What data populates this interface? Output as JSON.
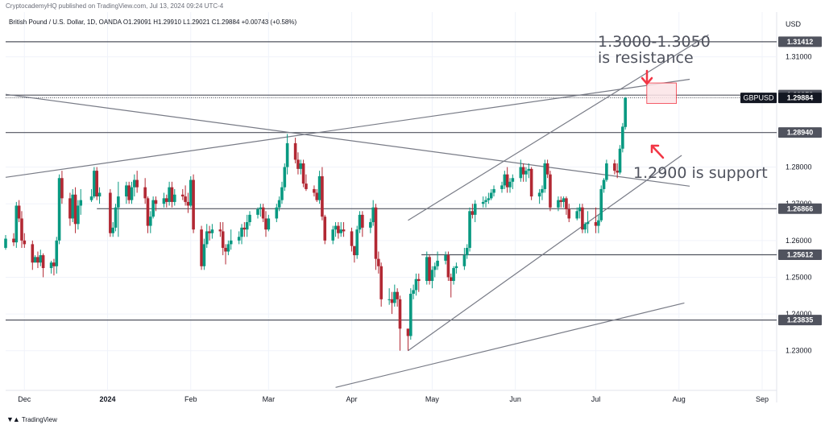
{
  "header": {
    "publisher": "CryptocademyHQ published on TradingView.com, Jul 13, 2024 09:24 UTC-4",
    "symbol_line": "British Pound / U.S. Dollar, 1D, OANDA  O1.29091  H1.29910  L1.29021  C1.29884  +0.00743 (+0.58%)"
  },
  "footer": {
    "brand": "TradingView",
    "logo": "tradingview-logo-icon"
  },
  "colors": {
    "up": "#089981",
    "down": "#b22833",
    "line": "#787b86",
    "box_fill": "#fce4e6",
    "box_stroke": "#f23645",
    "arrow": "#f23645",
    "grid_line": "#50535e"
  },
  "chart_data": {
    "type": "candlestick",
    "symbol": "GBPUSD",
    "currency": "USD",
    "ylim": [
      1.2192,
      1.3222
    ],
    "price_ticks": [
      "1.31000",
      "1.28000",
      "1.27000",
      "1.26000",
      "1.25000",
      "1.24000",
      "1.23000"
    ],
    "time_axis": {
      "labels": [
        "Dec",
        "2024",
        "Feb",
        "Mar",
        "Apr",
        "May",
        "Jun",
        "Jul",
        "Aug",
        "Sep"
      ],
      "dates": [
        "2023-12-01",
        "2024-01-01",
        "2024-02-01",
        "2024-03-01",
        "2024-04-01",
        "2024-05-01",
        "2024-06-01",
        "2024-07-01",
        "2024-08-01",
        "2024-09-01"
      ]
    },
    "horizontal_levels": [
      {
        "price": 1.31412,
        "label": "1.31412"
      },
      {
        "price": 1.29959,
        "label": "1.29959"
      },
      {
        "price": 1.2894,
        "label": "1.28940"
      },
      {
        "price": 1.26866,
        "label": "1.26866",
        "from": "2023-12-28"
      },
      {
        "price": 1.25612,
        "label": "1.25612",
        "from": "2024-04-27"
      },
      {
        "price": 1.23835,
        "label": "1.23835"
      }
    ],
    "current_price": {
      "label": "GBPUSD",
      "price": 1.29884,
      "value": "1.29884"
    },
    "trendlines": [
      {
        "from": [
          "2023-11-24",
          1.2772
        ],
        "to": [
          "2024-08-05",
          1.3039
        ]
      },
      {
        "from": [
          "2023-11-24",
          1.2998
        ],
        "to": [
          "2024-08-05",
          1.2748
        ]
      },
      {
        "from": [
          "2024-04-22",
          1.23
        ],
        "to": [
          "2024-08-02",
          1.2832
        ]
      },
      {
        "from": [
          "2024-04-22",
          1.2655
        ],
        "to": [
          "2024-08-12",
          1.316
        ]
      },
      {
        "from": [
          "2024-03-26",
          1.22
        ],
        "to": [
          "2024-08-03",
          1.243
        ]
      }
    ],
    "resistance_zone": {
      "from": "2024-07-20",
      "to": "2024-07-31",
      "low": 1.2973,
      "high": 1.3029
    },
    "annotations": [
      {
        "line1": "1.3000-1.3050",
        "line2": "is resistance"
      },
      {
        "line1": "1.2900 is support"
      }
    ],
    "candles": [
      [
        "2023-11-24",
        1.258,
        1.2615,
        1.2575,
        1.2605
      ],
      [
        "2023-11-27",
        1.2605,
        1.262,
        1.2585,
        1.2595
      ],
      [
        "2023-11-28",
        1.2595,
        1.2705,
        1.258,
        1.2695
      ],
      [
        "2023-11-29",
        1.2695,
        1.271,
        1.265,
        1.266
      ],
      [
        "2023-11-30",
        1.266,
        1.268,
        1.258,
        1.26
      ],
      [
        "2023-12-01",
        1.26,
        1.262,
        1.258,
        1.259
      ],
      [
        "2023-12-04",
        1.259,
        1.26,
        1.252,
        1.254
      ],
      [
        "2023-12-05",
        1.254,
        1.256,
        1.254,
        1.2555
      ],
      [
        "2023-12-06",
        1.2555,
        1.257,
        1.2525,
        1.254
      ],
      [
        "2023-12-07",
        1.254,
        1.2575,
        1.253,
        1.256
      ],
      [
        "2023-12-08",
        1.256,
        1.2565,
        1.25,
        1.2525
      ],
      [
        "2023-12-11",
        1.2525,
        1.2545,
        1.251,
        1.254
      ],
      [
        "2023-12-12",
        1.254,
        1.255,
        1.2505,
        1.253
      ],
      [
        "2023-12-13",
        1.253,
        1.261,
        1.251,
        1.26
      ],
      [
        "2023-12-14",
        1.26,
        1.278,
        1.259,
        1.277
      ],
      [
        "2023-12-15",
        1.277,
        1.279,
        1.27,
        1.2715
      ],
      [
        "2023-12-18",
        1.2715,
        1.273,
        1.264,
        1.266
      ],
      [
        "2023-12-19",
        1.266,
        1.274,
        1.265,
        1.2725
      ],
      [
        "2023-12-20",
        1.2725,
        1.2745,
        1.262,
        1.2645
      ],
      [
        "2023-12-21",
        1.2645,
        1.271,
        1.263,
        1.2695
      ],
      [
        "2023-12-22",
        1.2695,
        1.274,
        1.267,
        1.271
      ],
      [
        "2023-12-26",
        1.271,
        1.274,
        1.2705,
        1.272
      ],
      [
        "2023-12-27",
        1.272,
        1.28,
        1.2715,
        1.279
      ],
      [
        "2023-12-28",
        1.279,
        1.28,
        1.271,
        1.272
      ],
      [
        "2023-12-29",
        1.272,
        1.2745,
        1.27,
        1.273
      ],
      [
        "2024-01-02",
        1.273,
        1.274,
        1.261,
        1.262
      ],
      [
        "2024-01-03",
        1.262,
        1.265,
        1.261,
        1.2635
      ],
      [
        "2024-01-04",
        1.2635,
        1.27,
        1.2625,
        1.269
      ],
      [
        "2024-01-05",
        1.269,
        1.276,
        1.261,
        1.272
      ],
      [
        "2024-01-08",
        1.272,
        1.276,
        1.27,
        1.275
      ],
      [
        "2024-01-09",
        1.275,
        1.276,
        1.27,
        1.271
      ],
      [
        "2024-01-10",
        1.271,
        1.276,
        1.27,
        1.2745
      ],
      [
        "2024-01-11",
        1.2745,
        1.278,
        1.272,
        1.2765
      ],
      [
        "2024-01-12",
        1.2765,
        1.279,
        1.273,
        1.2745
      ],
      [
        "2024-01-15",
        1.2745,
        1.277,
        1.27,
        1.2715
      ],
      [
        "2024-01-16",
        1.2715,
        1.272,
        1.262,
        1.264
      ],
      [
        "2024-01-17",
        1.264,
        1.268,
        1.262,
        1.2665
      ],
      [
        "2024-01-18",
        1.2665,
        1.272,
        1.266,
        1.271
      ],
      [
        "2024-01-19",
        1.271,
        1.272,
        1.268,
        1.27
      ],
      [
        "2024-01-22",
        1.27,
        1.273,
        1.269,
        1.2715
      ],
      [
        "2024-01-23",
        1.2715,
        1.2725,
        1.269,
        1.2705
      ],
      [
        "2024-01-24",
        1.2705,
        1.276,
        1.2695,
        1.2745
      ],
      [
        "2024-01-25",
        1.2745,
        1.276,
        1.269,
        1.2705
      ],
      [
        "2024-01-26",
        1.2705,
        1.274,
        1.2695,
        1.2725
      ],
      [
        "2024-01-29",
        1.2725,
        1.274,
        1.271,
        1.272
      ],
      [
        "2024-01-30",
        1.272,
        1.275,
        1.2695,
        1.2705
      ],
      [
        "2024-01-31",
        1.2705,
        1.273,
        1.2675,
        1.2695
      ],
      [
        "2024-02-01",
        1.2695,
        1.2775,
        1.269,
        1.2765
      ],
      [
        "2024-02-02",
        1.2765,
        1.278,
        1.262,
        1.263
      ],
      [
        "2024-02-05",
        1.263,
        1.264,
        1.252,
        1.253
      ],
      [
        "2024-02-06",
        1.253,
        1.2605,
        1.252,
        1.259
      ],
      [
        "2024-02-07",
        1.259,
        1.2645,
        1.258,
        1.2625
      ],
      [
        "2024-02-08",
        1.2625,
        1.264,
        1.26,
        1.262
      ],
      [
        "2024-02-09",
        1.262,
        1.2645,
        1.2605,
        1.263
      ],
      [
        "2024-02-12",
        1.263,
        1.265,
        1.261,
        1.2625
      ],
      [
        "2024-02-13",
        1.2625,
        1.265,
        1.256,
        1.258
      ],
      [
        "2024-02-14",
        1.258,
        1.259,
        1.2535,
        1.257
      ],
      [
        "2024-02-15",
        1.257,
        1.26,
        1.256,
        1.259
      ],
      [
        "2024-02-16",
        1.259,
        1.263,
        1.2575,
        1.26
      ],
      [
        "2024-02-19",
        1.26,
        1.2625,
        1.259,
        1.261
      ],
      [
        "2024-02-20",
        1.261,
        1.2645,
        1.259,
        1.2635
      ],
      [
        "2024-02-21",
        1.2635,
        1.265,
        1.261,
        1.263
      ],
      [
        "2024-02-22",
        1.263,
        1.267,
        1.261,
        1.265
      ],
      [
        "2024-02-23",
        1.265,
        1.268,
        1.264,
        1.267
      ],
      [
        "2024-02-26",
        1.267,
        1.269,
        1.266,
        1.2685
      ],
      [
        "2024-02-27",
        1.2685,
        1.27,
        1.2665,
        1.269
      ],
      [
        "2024-02-28",
        1.269,
        1.27,
        1.265,
        1.266
      ],
      [
        "2024-02-29",
        1.266,
        1.268,
        1.261,
        1.263
      ],
      [
        "2024-03-01",
        1.263,
        1.267,
        1.2625,
        1.266
      ],
      [
        "2024-03-04",
        1.266,
        1.27,
        1.265,
        1.269
      ],
      [
        "2024-03-05",
        1.269,
        1.272,
        1.268,
        1.271
      ],
      [
        "2024-03-06",
        1.271,
        1.276,
        1.27,
        1.2745
      ],
      [
        "2024-03-07",
        1.2745,
        1.281,
        1.2735,
        1.28
      ],
      [
        "2024-03-08",
        1.28,
        1.289,
        1.278,
        1.2865
      ],
      [
        "2024-03-11",
        1.2865,
        1.288,
        1.281,
        1.282
      ],
      [
        "2024-03-12",
        1.282,
        1.284,
        1.278,
        1.2795
      ],
      [
        "2024-03-13",
        1.2795,
        1.282,
        1.278,
        1.281
      ],
      [
        "2024-03-14",
        1.281,
        1.282,
        1.2745,
        1.2755
      ],
      [
        "2024-03-15",
        1.2755,
        1.278,
        1.2735,
        1.274
      ],
      [
        "2024-03-18",
        1.274,
        1.275,
        1.272,
        1.273
      ],
      [
        "2024-03-19",
        1.273,
        1.274,
        1.2705,
        1.271
      ],
      [
        "2024-03-20",
        1.271,
        1.279,
        1.27,
        1.2775
      ],
      [
        "2024-03-21",
        1.2775,
        1.28,
        1.2655,
        1.2665
      ],
      [
        "2024-03-22",
        1.2665,
        1.267,
        1.259,
        1.26
      ],
      [
        "2024-03-25",
        1.26,
        1.264,
        1.259,
        1.263
      ],
      [
        "2024-03-26",
        1.263,
        1.265,
        1.261,
        1.264
      ],
      [
        "2024-03-27",
        1.264,
        1.265,
        1.2605,
        1.262
      ],
      [
        "2024-03-28",
        1.262,
        1.265,
        1.261,
        1.263
      ],
      [
        "2024-03-29",
        1.263,
        1.265,
        1.261,
        1.2625
      ],
      [
        "2024-04-01",
        1.2625,
        1.2635,
        1.257,
        1.2585
      ],
      [
        "2024-04-02",
        1.2585,
        1.258,
        1.254,
        1.256
      ],
      [
        "2024-04-03",
        1.256,
        1.264,
        1.255,
        1.263
      ],
      [
        "2024-04-04",
        1.263,
        1.268,
        1.262,
        1.267
      ],
      [
        "2024-04-05",
        1.267,
        1.268,
        1.261,
        1.2635
      ],
      [
        "2024-04-08",
        1.2635,
        1.266,
        1.262,
        1.265
      ],
      [
        "2024-04-09",
        1.265,
        1.271,
        1.264,
        1.269
      ],
      [
        "2024-04-10",
        1.269,
        1.27,
        1.252,
        1.255
      ],
      [
        "2024-04-11",
        1.255,
        1.257,
        1.251,
        1.253
      ],
      [
        "2024-04-12",
        1.253,
        1.254,
        1.242,
        1.244
      ],
      [
        "2024-04-15",
        1.244,
        1.247,
        1.2425,
        1.244
      ],
      [
        "2024-04-16",
        1.244,
        1.246,
        1.24,
        1.243
      ],
      [
        "2024-04-17",
        1.243,
        1.248,
        1.242,
        1.246
      ],
      [
        "2024-04-18",
        1.246,
        1.247,
        1.242,
        1.244
      ],
      [
        "2024-04-19",
        1.244,
        1.245,
        1.23,
        1.236
      ],
      [
        "2024-04-22",
        1.236,
        1.236,
        1.23,
        1.234
      ],
      [
        "2024-04-23",
        1.234,
        1.247,
        1.233,
        1.2455
      ],
      [
        "2024-04-24",
        1.2455,
        1.248,
        1.244,
        1.2465
      ],
      [
        "2024-04-25",
        1.2465,
        1.251,
        1.245,
        1.2495
      ],
      [
        "2024-04-26",
        1.2495,
        1.251,
        1.246,
        1.249
      ],
      [
        "2024-04-29",
        1.249,
        1.257,
        1.248,
        1.2555
      ],
      [
        "2024-04-30",
        1.2555,
        1.256,
        1.248,
        1.249
      ],
      [
        "2024-05-01",
        1.249,
        1.253,
        1.247,
        1.252
      ],
      [
        "2024-05-02",
        1.252,
        1.254,
        1.25,
        1.253
      ],
      [
        "2024-05-03",
        1.253,
        1.257,
        1.252,
        1.2545
      ],
      [
        "2024-05-06",
        1.2545,
        1.257,
        1.2535,
        1.256
      ],
      [
        "2024-05-07",
        1.256,
        1.257,
        1.249,
        1.25
      ],
      [
        "2024-05-08",
        1.25,
        1.251,
        1.2445,
        1.249
      ],
      [
        "2024-05-09",
        1.249,
        1.253,
        1.248,
        1.2525
      ],
      [
        "2024-05-10",
        1.2525,
        1.254,
        1.251,
        1.253
      ],
      [
        "2024-05-13",
        1.253,
        1.258,
        1.252,
        1.256
      ],
      [
        "2024-05-14",
        1.256,
        1.259,
        1.255,
        1.258
      ],
      [
        "2024-05-15",
        1.258,
        1.269,
        1.257,
        1.268
      ],
      [
        "2024-05-16",
        1.268,
        1.27,
        1.266,
        1.267
      ],
      [
        "2024-05-17",
        1.267,
        1.271,
        1.265,
        1.27
      ],
      [
        "2024-05-20",
        1.27,
        1.272,
        1.269,
        1.2705
      ],
      [
        "2024-05-21",
        1.2705,
        1.272,
        1.269,
        1.271
      ],
      [
        "2024-05-22",
        1.271,
        1.273,
        1.27,
        1.2715
      ],
      [
        "2024-05-23",
        1.2715,
        1.274,
        1.271,
        1.273
      ],
      [
        "2024-05-24",
        1.273,
        1.275,
        1.272,
        1.274
      ],
      [
        "2024-05-27",
        1.274,
        1.276,
        1.273,
        1.275
      ],
      [
        "2024-05-28",
        1.275,
        1.279,
        1.274,
        1.278
      ],
      [
        "2024-05-29",
        1.278,
        1.28,
        1.273,
        1.2745
      ],
      [
        "2024-05-30",
        1.2745,
        1.277,
        1.273,
        1.276
      ],
      [
        "2024-05-31",
        1.276,
        1.278,
        1.274,
        1.277
      ],
      [
        "2024-06-03",
        1.277,
        1.282,
        1.276,
        1.28
      ],
      [
        "2024-06-04",
        1.28,
        1.281,
        1.276,
        1.278
      ],
      [
        "2024-06-05",
        1.278,
        1.28,
        1.276,
        1.279
      ],
      [
        "2024-06-06",
        1.279,
        1.281,
        1.277,
        1.2795
      ],
      [
        "2024-06-07",
        1.2795,
        1.28,
        1.271,
        1.272
      ],
      [
        "2024-06-10",
        1.272,
        1.274,
        1.27,
        1.273
      ],
      [
        "2024-06-11",
        1.273,
        1.275,
        1.271,
        1.274
      ],
      [
        "2024-06-12",
        1.274,
        1.282,
        1.273,
        1.281
      ],
      [
        "2024-06-13",
        1.281,
        1.282,
        1.277,
        1.278
      ],
      [
        "2024-06-14",
        1.278,
        1.279,
        1.268,
        1.269
      ],
      [
        "2024-06-17",
        1.269,
        1.272,
        1.268,
        1.271
      ],
      [
        "2024-06-18",
        1.271,
        1.272,
        1.269,
        1.2705
      ],
      [
        "2024-06-19",
        1.2705,
        1.272,
        1.269,
        1.2715
      ],
      [
        "2024-06-20",
        1.2715,
        1.272,
        1.267,
        1.2685
      ],
      [
        "2024-06-21",
        1.2685,
        1.27,
        1.265,
        1.266
      ],
      [
        "2024-06-24",
        1.266,
        1.269,
        1.2655,
        1.268
      ],
      [
        "2024-06-25",
        1.268,
        1.27,
        1.266,
        1.269
      ],
      [
        "2024-06-26",
        1.269,
        1.27,
        1.262,
        1.263
      ],
      [
        "2024-06-27",
        1.263,
        1.265,
        1.262,
        1.2645
      ],
      [
        "2024-06-28",
        1.2645,
        1.268,
        1.262,
        1.265
      ],
      [
        "2024-07-01",
        1.265,
        1.269,
        1.262,
        1.264
      ],
      [
        "2024-07-02",
        1.264,
        1.267,
        1.262,
        1.2655
      ],
      [
        "2024-07-03",
        1.2655,
        1.275,
        1.265,
        1.274
      ],
      [
        "2024-07-04",
        1.274,
        1.277,
        1.273,
        1.2765
      ],
      [
        "2024-07-05",
        1.2765,
        1.282,
        1.276,
        1.281
      ],
      [
        "2024-07-08",
        1.281,
        1.282,
        1.278,
        1.279
      ],
      [
        "2024-07-09",
        1.279,
        1.281,
        1.277,
        1.2785
      ],
      [
        "2024-07-10",
        1.2785,
        1.286,
        1.278,
        1.285
      ],
      [
        "2024-07-11",
        1.285,
        1.292,
        1.284,
        1.291
      ],
      [
        "2024-07-12",
        1.29091,
        1.2991,
        1.29021,
        1.29884
      ]
    ]
  }
}
